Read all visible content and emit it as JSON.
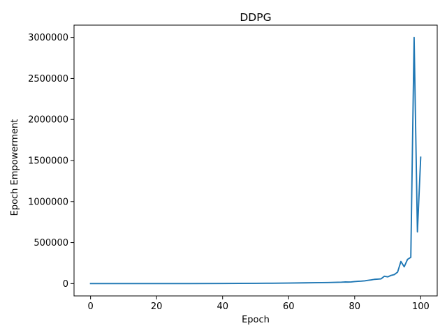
{
  "chart_data": {
    "type": "line",
    "title": "DDPG",
    "xlabel": "Epoch",
    "ylabel": "Epoch Empowerment",
    "xlim": [
      -5,
      105
    ],
    "ylim": [
      -150000,
      3150000
    ],
    "xticks": [
      0,
      20,
      40,
      60,
      80,
      100
    ],
    "yticks": [
      0,
      500000,
      1000000,
      1500000,
      2000000,
      2500000,
      3000000
    ],
    "grid": false,
    "series": [
      {
        "color": "#1f77b4",
        "points": [
          [
            0,
            0
          ],
          [
            10,
            100
          ],
          [
            20,
            300
          ],
          [
            30,
            800
          ],
          [
            40,
            1800
          ],
          [
            50,
            3500
          ],
          [
            55,
            5000
          ],
          [
            60,
            7000
          ],
          [
            65,
            9500
          ],
          [
            70,
            12000
          ],
          [
            72,
            13500
          ],
          [
            74,
            15000
          ],
          [
            76,
            17000
          ],
          [
            77,
            20000
          ],
          [
            78,
            19000
          ],
          [
            79,
            21000
          ],
          [
            80,
            25000
          ],
          [
            81,
            28000
          ],
          [
            82,
            30000
          ],
          [
            83,
            33000
          ],
          [
            84,
            40000
          ],
          [
            85,
            45000
          ],
          [
            86,
            52000
          ],
          [
            87,
            55000
          ],
          [
            88,
            58000
          ],
          [
            89,
            90000
          ],
          [
            90,
            82000
          ],
          [
            91,
            100000
          ],
          [
            92,
            110000
          ],
          [
            93,
            140000
          ],
          [
            94,
            270000
          ],
          [
            95,
            205000
          ],
          [
            96,
            295000
          ],
          [
            97,
            320000
          ],
          [
            98,
            3000000
          ],
          [
            99,
            630000
          ],
          [
            100,
            1540000
          ]
        ]
      }
    ]
  }
}
